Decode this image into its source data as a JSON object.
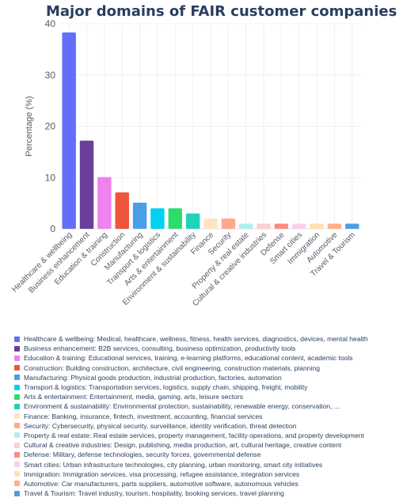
{
  "chart_data": {
    "type": "bar",
    "title": "Major domains of FAIR customer companies",
    "ylabel": "Percentage (%)",
    "xlabel": "",
    "ylim": [
      0,
      40
    ],
    "yticks": [
      0,
      10,
      20,
      30,
      40
    ],
    "grid": true,
    "legend_position": "bottom",
    "categories": [
      "Healthcare & wellbeing",
      "Business enhancement",
      "Education & training",
      "Construction",
      "Manufacturing",
      "Transport & logistics",
      "Arts & entertainment",
      "Environment & sustainability",
      "Finance",
      "Security",
      "Property & real estate",
      "Cultural & creative industries",
      "Defense",
      "Smart cities",
      "Immigration",
      "Automotive",
      "Travel & Tourism"
    ],
    "values": [
      38.3,
      17.2,
      10.1,
      7.1,
      5.1,
      4.0,
      4.0,
      3.0,
      2.0,
      2.0,
      1.0,
      1.0,
      1.0,
      1.0,
      1.0,
      1.0,
      1.0
    ],
    "colors": [
      "#636efa",
      "#6a3d9a",
      "#ee82ee",
      "#ef553b",
      "#4a9ee8",
      "#00d2f0",
      "#2edc6d",
      "#1fd3b8",
      "#ffe4c4",
      "#ffa98a",
      "#b0eeee",
      "#f8d0d4",
      "#ff8a80",
      "#f8d0ea",
      "#ffe0b0",
      "#ffb08a",
      "#4a9ee8"
    ],
    "legend": [
      "Healthcare & wellbeing: Medical, healthcare, wellness, fitness, health services, diagnostics, devices, mental health",
      "Business enhancement: B2B services, consulting, business optimization, productivity tools",
      "Education & training: Educational services, training, e-learning platforms, educational content, academic tools",
      "Construction: Building construction, architecture, civil engineering, construction materials, planning",
      "Manufacturing: Physical goods production, industrial production, factories, automation",
      "Transport & logistics: Transportation services, logistics, supply chain, shipping, freight, mobility",
      "Arts & entertainment: Entertainment, media, gaming, arts, leisure sectors",
      "Environment & sustainability: Environmental protection, sustainability, renewable energy, conservation, ...",
      "Finance: Banking, insurance, fintech, investment, accounting, financial services",
      "Security: Cybersecurity, physical security, surveillance, identity verification, threat detection",
      "Property & real estate: Real estate services, property management, facility operations, and property development",
      "Cultural & creative industries: Design, publishing, media production, art, cultural heritage, creative content",
      "Defense: Military, defense technologies, security forces, governmental defense",
      "Smart cities: Urban infrastructure technologies, city planning, urban monitoring, smart city initiatives",
      "Immigration: Immigration services, visa processing, refugee assistance, integration services",
      "Automotive: Car manufacturers, parts suppliers, automotive software, autonomous vehicles",
      "Travel & Tourism: Travel industry, tourism, hospitality, booking services, travel planning"
    ]
  }
}
